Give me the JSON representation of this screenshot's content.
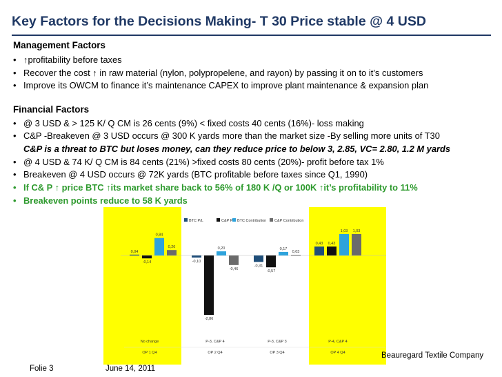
{
  "title": "Key Factors for the Decisions Making- T 30 Price stable @ 4 USD",
  "management": {
    "heading": "Management  Factors",
    "bullets": [
      "↑profitability before taxes",
      "Recover the cost ↑ in raw material (nylon, polypropelene, and rayon) by passing it on to it’s customers",
      "Improve its OWCM to finance it’s maintenance CAPEX to improve plant maintenance & expansion plan"
    ]
  },
  "financial": {
    "heading": "Financial Factors",
    "bullets": [
      "@ 3 USD & > 125 K/ Q CM is 26 cents (9%) < fixed costs 40 cents (16%)- loss making",
      "C&P -Breakeven @ 3 USD occurs @ 300 K yards more than the market size -By selling more units of T30"
    ],
    "italic_line": "C&P is a threat to BTC but loses money, can they reduce price to below 3, 2.85, VC= 2.80, 1.2 M yards",
    "bullets2": [
      "@ 4 USD & 74 K/ Q CM is 84 cents (21%) >fixed costs 80 cents (20%)- profit before tax 1%",
      "Breakeven @ 4 USD occurs @ 72K yards (BTC profitable before taxes since Q1, 1990)"
    ],
    "green_bullets": [
      "If C& P ↑ price BTC ↑its market share back to 56% of 180 K /Q or 100K ↑it’s profitability to 11%",
      "Breakeven points reduce to 58 K yards"
    ]
  },
  "bullet_char": "•",
  "chart_data": {
    "type": "bar",
    "series": [
      {
        "name": "BTC P/L",
        "color": "#1f4e79",
        "values": [
          0.04,
          -0.1,
          -0.31,
          0.43
        ]
      },
      {
        "name": "C&P P/L",
        "color": "#111111",
        "values": [
          -0.14,
          -2.86,
          -0.57,
          0.43
        ]
      },
      {
        "name": "BTC Contribution",
        "color": "#2ea3dc",
        "values": [
          0.84,
          0.2,
          0.17,
          1.03
        ]
      },
      {
        "name": "C&P Contribution",
        "color": "#6b6b6b",
        "values": [
          0.26,
          -0.46,
          0.03,
          1.03
        ]
      }
    ],
    "data_labels": [
      [
        "0,04",
        "-0,14",
        "0,84",
        "0,26"
      ],
      [
        "-0,10",
        "-2,86",
        "0,20",
        "-0,46"
      ],
      [
        "-0,31",
        "-0,57",
        "0,17",
        "0,03"
      ],
      [
        "0,43",
        "0,43",
        "1,03",
        "1,03"
      ]
    ],
    "categories": [
      {
        "scenario": "No change",
        "option": "OP 1 Q4"
      },
      {
        "scenario": "P-3, C&P 4",
        "option": "OP 2 Q4"
      },
      {
        "scenario": "P-3, C&P 3",
        "option": "OP 3 Q4"
      },
      {
        "scenario": "P-4, C&P 4",
        "option": "OP 4 Q4"
      }
    ],
    "highlighted": [
      0,
      3
    ],
    "highlight_color": "#ffff00",
    "ylim": [
      -3.2,
      1.4
    ],
    "legend_position": "top"
  },
  "footer": {
    "slide": "Folie 3",
    "date": "June  14, 2011",
    "company": "Beauregard Textile Company"
  }
}
